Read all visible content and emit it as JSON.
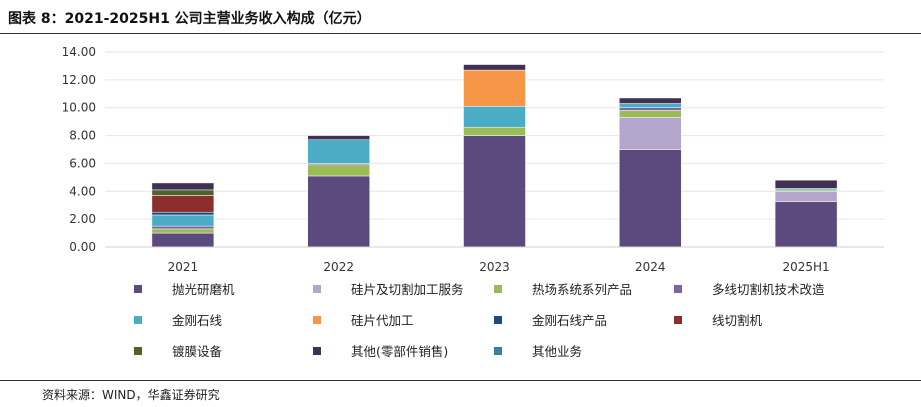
{
  "figure": {
    "title": "图表 8：2021-2025H1 公司主营业务收入构成（亿元）",
    "source": "资料来源：WIND，华鑫证券研究"
  },
  "chart_data": {
    "type": "bar",
    "stacked": true,
    "categories": [
      "2021",
      "2022",
      "2023",
      "2024",
      "2025H1"
    ],
    "ylim": [
      0,
      14
    ],
    "yticks": [
      "0.00",
      "2.00",
      "4.00",
      "6.00",
      "8.00",
      "10.00",
      "12.00",
      "14.00"
    ],
    "ytick_values": [
      0,
      2,
      4,
      6,
      8,
      10,
      12,
      14
    ],
    "series": [
      {
        "name": "抛光研磨机",
        "color": "#5c4a7e",
        "values": [
          1.0,
          5.1,
          8.0,
          7.0,
          3.25
        ]
      },
      {
        "name": "硅片及切割加工服务",
        "color": "#b3a5cc",
        "values": [
          0.0,
          0.0,
          0.0,
          2.3,
          0.75
        ]
      },
      {
        "name": "热场系统系列产品",
        "color": "#9bbb59",
        "values": [
          0.3,
          0.8,
          0.6,
          0.5,
          0.1
        ]
      },
      {
        "name": "多线切割机技术改造",
        "color": "#8064a2",
        "values": [
          0.2,
          0.1,
          0.0,
          0.2,
          0.0
        ]
      },
      {
        "name": "金刚石线",
        "color": "#4bacc6",
        "values": [
          0.8,
          1.7,
          1.5,
          0.3,
          0.1
        ]
      },
      {
        "name": "硅片代加工",
        "color": "#f79646",
        "values": [
          0.0,
          0.0,
          2.6,
          0.0,
          0.0
        ]
      },
      {
        "name": "金刚石线产品",
        "color": "#1f497d",
        "values": [
          0.2,
          0.0,
          0.0,
          0.0,
          0.0
        ]
      },
      {
        "name": "线切割机",
        "color": "#8b2e2e",
        "values": [
          1.2,
          0.0,
          0.0,
          0.0,
          0.0
        ]
      },
      {
        "name": "镀膜设备",
        "color": "#4f6228",
        "values": [
          0.4,
          0.0,
          0.0,
          0.0,
          0.0
        ]
      },
      {
        "name": "其他(零部件销售)",
        "color": "#403152",
        "values": [
          0.5,
          0.3,
          0.4,
          0.4,
          0.6
        ]
      },
      {
        "name": "其他业务",
        "color": "#31859c",
        "values": [
          0.0,
          0.0,
          0.0,
          0.0,
          0.0
        ]
      }
    ]
  }
}
